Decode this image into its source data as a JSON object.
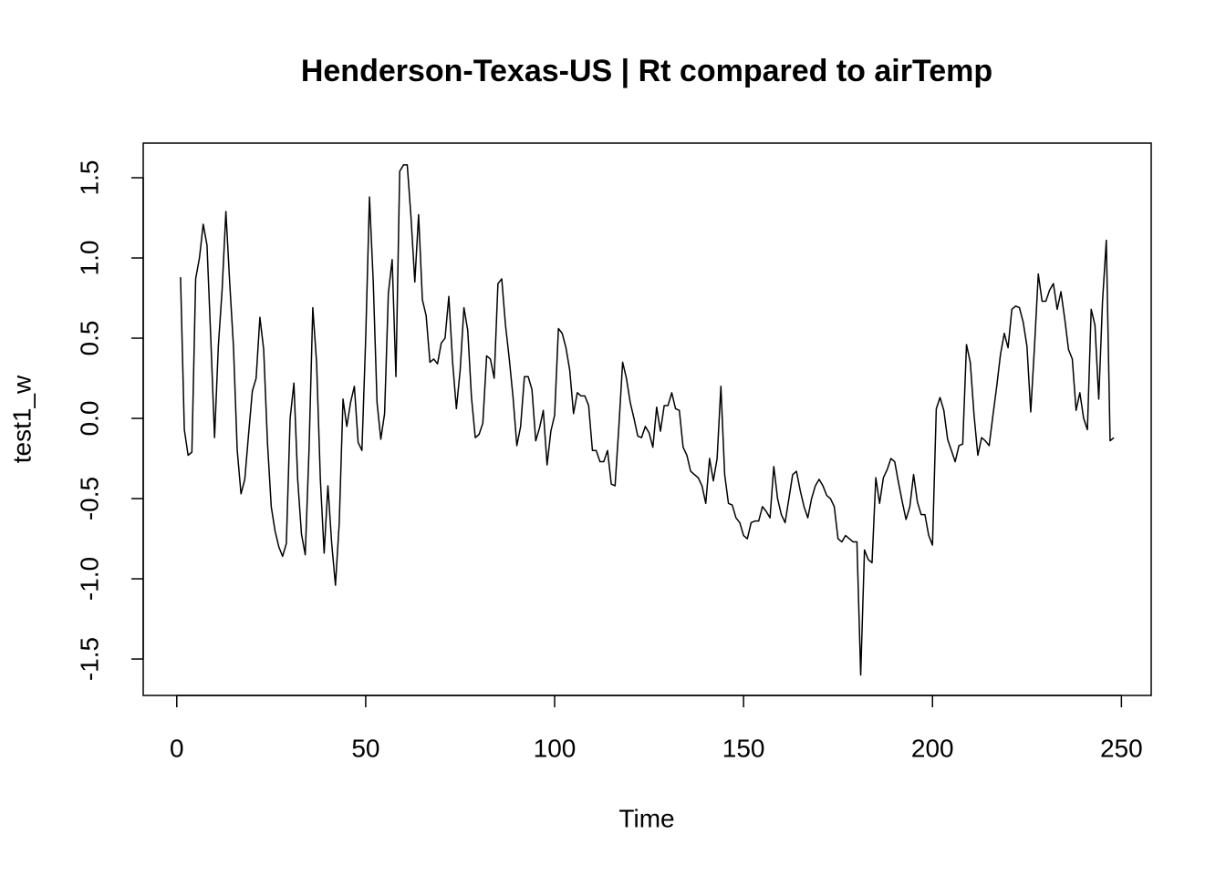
{
  "chart_data": {
    "type": "line",
    "title": "Henderson-Texas-US | Rt compared to airTemp",
    "x_label": "Time",
    "y_label": "test1_w",
    "x": [
      1,
      2,
      3,
      4,
      5,
      6,
      7,
      8,
      9,
      10,
      11,
      12,
      13,
      14,
      15,
      16,
      17,
      18,
      19,
      20,
      21,
      22,
      23,
      24,
      25,
      26,
      27,
      28,
      29,
      30,
      31,
      32,
      33,
      34,
      35,
      36,
      37,
      38,
      39,
      40,
      41,
      42,
      43,
      44,
      45,
      46,
      47,
      48,
      49,
      50,
      51,
      52,
      53,
      54,
      55,
      56,
      57,
      58,
      59,
      60,
      61,
      62,
      63,
      64,
      65,
      66,
      67,
      68,
      69,
      70,
      71,
      72,
      73,
      74,
      75,
      76,
      77,
      78,
      79,
      80,
      81,
      82,
      83,
      84,
      85,
      86,
      87,
      88,
      89,
      90,
      91,
      92,
      93,
      94,
      95,
      96,
      97,
      98,
      99,
      100,
      101,
      102,
      103,
      104,
      105,
      106,
      107,
      108,
      109,
      110,
      111,
      112,
      113,
      114,
      115,
      116,
      117,
      118,
      119,
      120,
      121,
      122,
      123,
      124,
      125,
      126,
      127,
      128,
      129,
      130,
      131,
      132,
      133,
      134,
      135,
      136,
      137,
      138,
      139,
      140,
      141,
      142,
      143,
      144,
      145,
      146,
      147,
      148,
      149,
      150,
      151,
      152,
      153,
      154,
      155,
      156,
      157,
      158,
      159,
      160,
      161,
      162,
      163,
      164,
      165,
      166,
      167,
      168,
      169,
      170,
      171,
      172,
      173,
      174,
      175,
      176,
      177,
      178,
      179,
      180,
      181,
      182,
      183,
      184,
      185,
      186,
      187,
      188,
      189,
      190,
      191,
      192,
      193,
      194,
      195,
      196,
      197,
      198,
      199,
      200,
      201,
      202,
      203,
      204,
      205,
      206,
      207,
      208,
      209,
      210,
      211,
      212,
      213,
      214,
      215,
      216,
      217,
      218,
      219,
      220,
      221,
      222,
      223,
      224,
      225,
      226,
      227,
      228,
      229,
      230,
      231,
      232,
      233,
      234,
      235,
      236,
      237,
      238,
      239,
      240,
      241,
      242,
      243,
      244,
      245,
      246,
      247,
      248
    ],
    "series": [
      {
        "color": "#000000",
        "values": [
          0.88,
          -0.07,
          -0.23,
          -0.21,
          0.87,
          1.0,
          1.21,
          1.08,
          0.5,
          -0.12,
          0.45,
          0.8,
          1.29,
          0.85,
          0.45,
          -0.2,
          -0.47,
          -0.38,
          -0.1,
          0.17,
          0.25,
          0.63,
          0.43,
          -0.15,
          -0.55,
          -0.7,
          -0.8,
          -0.86,
          -0.78,
          0.0,
          0.22,
          -0.38,
          -0.72,
          -0.85,
          -0.2,
          0.69,
          0.35,
          -0.38,
          -0.84,
          -0.42,
          -0.78,
          -1.04,
          -0.65,
          0.12,
          -0.05,
          0.1,
          0.2,
          -0.15,
          -0.2,
          0.5,
          1.38,
          0.85,
          0.1,
          -0.13,
          0.03,
          0.78,
          0.99,
          0.26,
          1.54,
          1.58,
          1.58,
          1.25,
          0.85,
          1.27,
          0.74,
          0.64,
          0.35,
          0.37,
          0.34,
          0.47,
          0.5,
          0.76,
          0.35,
          0.06,
          0.3,
          0.69,
          0.55,
          0.13,
          -0.12,
          -0.1,
          -0.03,
          0.39,
          0.37,
          0.25,
          0.84,
          0.87,
          0.58,
          0.37,
          0.13,
          -0.17,
          -0.05,
          0.26,
          0.26,
          0.18,
          -0.14,
          -0.06,
          0.05,
          -0.29,
          -0.08,
          0.02,
          0.56,
          0.53,
          0.44,
          0.3,
          0.03,
          0.16,
          0.14,
          0.14,
          0.08,
          -0.2,
          -0.2,
          -0.27,
          -0.27,
          -0.2,
          -0.41,
          -0.42,
          -0.05,
          0.35,
          0.25,
          0.1,
          0.0,
          -0.11,
          -0.12,
          -0.05,
          -0.09,
          -0.18,
          0.07,
          -0.08,
          0.08,
          0.08,
          0.16,
          0.06,
          0.05,
          -0.18,
          -0.23,
          -0.33,
          -0.35,
          -0.37,
          -0.42,
          -0.53,
          -0.25,
          -0.39,
          -0.25,
          0.2,
          -0.35,
          -0.53,
          -0.54,
          -0.62,
          -0.65,
          -0.73,
          -0.75,
          -0.65,
          -0.64,
          -0.64,
          -0.55,
          -0.58,
          -0.62,
          -0.3,
          -0.5,
          -0.6,
          -0.65,
          -0.5,
          -0.35,
          -0.33,
          -0.45,
          -0.55,
          -0.62,
          -0.5,
          -0.42,
          -0.38,
          -0.42,
          -0.48,
          -0.5,
          -0.55,
          -0.75,
          -0.77,
          -0.73,
          -0.75,
          -0.77,
          -0.77,
          -1.6,
          -0.82,
          -0.88,
          -0.9,
          -0.37,
          -0.53,
          -0.37,
          -0.32,
          -0.25,
          -0.27,
          -0.4,
          -0.52,
          -0.63,
          -0.55,
          -0.35,
          -0.52,
          -0.6,
          -0.6,
          -0.73,
          -0.79,
          0.06,
          0.13,
          0.05,
          -0.13,
          -0.2,
          -0.27,
          -0.17,
          -0.16,
          0.46,
          0.35,
          0.02,
          -0.23,
          -0.12,
          -0.14,
          -0.17,
          0.02,
          0.2,
          0.4,
          0.53,
          0.44,
          0.68,
          0.7,
          0.69,
          0.6,
          0.45,
          0.04,
          0.45,
          0.9,
          0.73,
          0.73,
          0.8,
          0.84,
          0.68,
          0.79,
          0.62,
          0.43,
          0.37,
          0.05,
          0.16,
          0.0,
          -0.07,
          0.68,
          0.58,
          0.12,
          0.73,
          1.11,
          -0.14,
          -0.12
        ]
      }
    ],
    "xlim": [
      -8.88,
      257.88
    ],
    "ylim": [
      -1.727,
      1.716
    ],
    "xticks": [
      0,
      50,
      100,
      150,
      200,
      250
    ],
    "yticks": [
      -1.5,
      {
        "value": -1,
        "label": "-1.0"
      },
      -0.5,
      {
        "value": 0,
        "label": "0.0"
      },
      0.5,
      {
        "value": 1,
        "label": "1.0"
      },
      1.5
    ]
  }
}
